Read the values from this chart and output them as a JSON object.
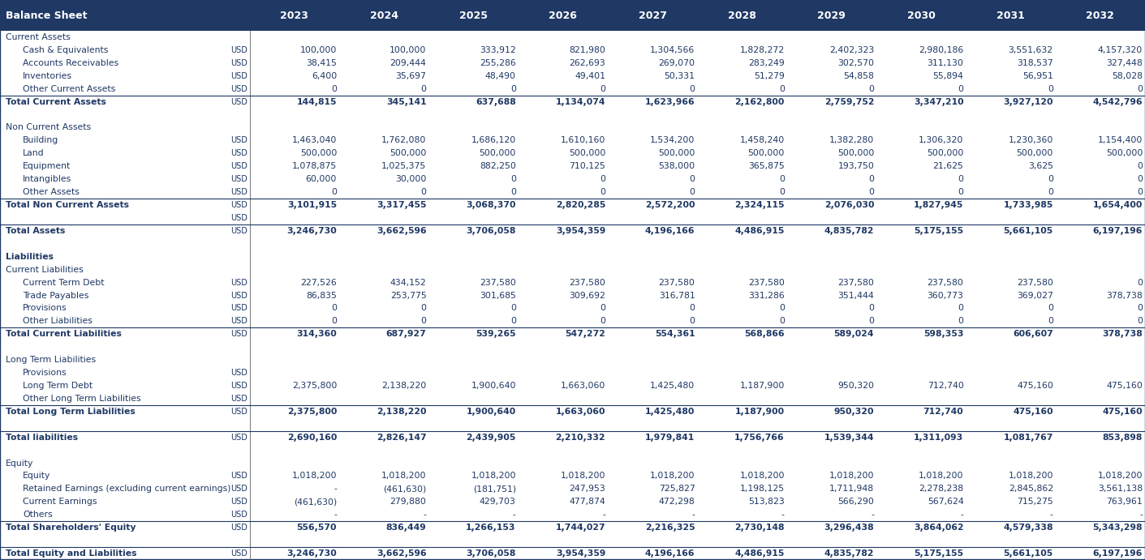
{
  "title": "Balance Sheet",
  "years": [
    "2023",
    "2024",
    "2025",
    "2026",
    "2027",
    "2028",
    "2029",
    "2030",
    "2031",
    "2032"
  ],
  "header_bg": "#1F3864",
  "header_text": "#FFFFFF",
  "normal_text_color": "#1F3864",
  "rows": [
    {
      "label": "Current Assets",
      "indent": 0,
      "currency": "",
      "is_section": true,
      "is_total": false,
      "is_bold": false,
      "values": [
        "",
        "",
        "",
        "",
        "",
        "",
        "",
        "",
        "",
        ""
      ],
      "top_border": false
    },
    {
      "label": "Cash & Equivalents",
      "indent": 1,
      "currency": "USD",
      "is_section": false,
      "is_total": false,
      "is_bold": false,
      "values": [
        "100,000",
        "100,000",
        "333,912",
        "821,980",
        "1,304,566",
        "1,828,272",
        "2,402,323",
        "2,980,186",
        "3,551,632",
        "4,157,320"
      ],
      "top_border": false
    },
    {
      "label": "Accounts Receivables",
      "indent": 1,
      "currency": "USD",
      "is_section": false,
      "is_total": false,
      "is_bold": false,
      "values": [
        "38,415",
        "209,444",
        "255,286",
        "262,693",
        "269,070",
        "283,249",
        "302,570",
        "311,130",
        "318,537",
        "327,448"
      ],
      "top_border": false
    },
    {
      "label": "Inventories",
      "indent": 1,
      "currency": "USD",
      "is_section": false,
      "is_total": false,
      "is_bold": false,
      "values": [
        "6,400",
        "35,697",
        "48,490",
        "49,401",
        "50,331",
        "51,279",
        "54,858",
        "55,894",
        "56,951",
        "58,028"
      ],
      "top_border": false
    },
    {
      "label": "Other Current Assets",
      "indent": 1,
      "currency": "USD",
      "is_section": false,
      "is_total": false,
      "is_bold": false,
      "values": [
        "0",
        "0",
        "0",
        "0",
        "0",
        "0",
        "0",
        "0",
        "0",
        "0"
      ],
      "top_border": false
    },
    {
      "label": "Total Current Assets",
      "indent": 0,
      "currency": "USD",
      "is_section": false,
      "is_total": true,
      "is_bold": true,
      "values": [
        "144,815",
        "345,141",
        "637,688",
        "1,134,074",
        "1,623,966",
        "2,162,800",
        "2,759,752",
        "3,347,210",
        "3,927,120",
        "4,542,796"
      ],
      "top_border": true
    },
    {
      "label": "",
      "indent": 0,
      "currency": "",
      "is_section": false,
      "is_total": false,
      "is_bold": false,
      "values": [
        "",
        "",
        "",
        "",
        "",
        "",
        "",
        "",
        "",
        ""
      ],
      "top_border": false
    },
    {
      "label": "Non Current Assets",
      "indent": 0,
      "currency": "",
      "is_section": true,
      "is_total": false,
      "is_bold": false,
      "values": [
        "",
        "",
        "",
        "",
        "",
        "",
        "",
        "",
        "",
        ""
      ],
      "top_border": false
    },
    {
      "label": "Building",
      "indent": 1,
      "currency": "USD",
      "is_section": false,
      "is_total": false,
      "is_bold": false,
      "values": [
        "1,463,040",
        "1,762,080",
        "1,686,120",
        "1,610,160",
        "1,534,200",
        "1,458,240",
        "1,382,280",
        "1,306,320",
        "1,230,360",
        "1,154,400"
      ],
      "top_border": false
    },
    {
      "label": "Land",
      "indent": 1,
      "currency": "USD",
      "is_section": false,
      "is_total": false,
      "is_bold": false,
      "values": [
        "500,000",
        "500,000",
        "500,000",
        "500,000",
        "500,000",
        "500,000",
        "500,000",
        "500,000",
        "500,000",
        "500,000"
      ],
      "top_border": false
    },
    {
      "label": "Equipment",
      "indent": 1,
      "currency": "USD",
      "is_section": false,
      "is_total": false,
      "is_bold": false,
      "values": [
        "1,078,875",
        "1,025,375",
        "882,250",
        "710,125",
        "538,000",
        "365,875",
        "193,750",
        "21,625",
        "3,625",
        "0"
      ],
      "top_border": false
    },
    {
      "label": "Intangibles",
      "indent": 1,
      "currency": "USD",
      "is_section": false,
      "is_total": false,
      "is_bold": false,
      "values": [
        "60,000",
        "30,000",
        "0",
        "0",
        "0",
        "0",
        "0",
        "0",
        "0",
        "0"
      ],
      "top_border": false
    },
    {
      "label": "Other Assets",
      "indent": 1,
      "currency": "USD",
      "is_section": false,
      "is_total": false,
      "is_bold": false,
      "values": [
        "0",
        "0",
        "0",
        "0",
        "0",
        "0",
        "0",
        "0",
        "0",
        "0"
      ],
      "top_border": false
    },
    {
      "label": "Total Non Current Assets",
      "indent": 0,
      "currency": "USD",
      "is_section": false,
      "is_total": true,
      "is_bold": true,
      "values": [
        "3,101,915",
        "3,317,455",
        "3,068,370",
        "2,820,285",
        "2,572,200",
        "2,324,115",
        "2,076,030",
        "1,827,945",
        "1,733,985",
        "1,654,400"
      ],
      "top_border": true
    },
    {
      "label": "",
      "indent": 0,
      "currency": "USD",
      "is_section": false,
      "is_total": false,
      "is_bold": false,
      "values": [
        "",
        "",
        "",
        "",
        "",
        "",
        "",
        "",
        "",
        ""
      ],
      "top_border": false
    },
    {
      "label": "Total Assets",
      "indent": 0,
      "currency": "USD",
      "is_section": false,
      "is_total": true,
      "is_bold": true,
      "values": [
        "3,246,730",
        "3,662,596",
        "3,706,058",
        "3,954,359",
        "4,196,166",
        "4,486,915",
        "4,835,782",
        "5,175,155",
        "5,661,105",
        "6,197,196"
      ],
      "top_border": true
    },
    {
      "label": "",
      "indent": 0,
      "currency": "",
      "is_section": false,
      "is_total": false,
      "is_bold": false,
      "values": [
        "",
        "",
        "",
        "",
        "",
        "",
        "",
        "",
        "",
        ""
      ],
      "top_border": false
    },
    {
      "label": "Liabilities",
      "indent": 0,
      "currency": "",
      "is_section": true,
      "is_total": false,
      "is_bold": true,
      "values": [
        "",
        "",
        "",
        "",
        "",
        "",
        "",
        "",
        "",
        ""
      ],
      "top_border": false
    },
    {
      "label": "Current Liabilities",
      "indent": 0,
      "currency": "",
      "is_section": true,
      "is_total": false,
      "is_bold": false,
      "values": [
        "",
        "",
        "",
        "",
        "",
        "",
        "",
        "",
        "",
        ""
      ],
      "top_border": false
    },
    {
      "label": "Current Term Debt",
      "indent": 1,
      "currency": "USD",
      "is_section": false,
      "is_total": false,
      "is_bold": false,
      "values": [
        "227,526",
        "434,152",
        "237,580",
        "237,580",
        "237,580",
        "237,580",
        "237,580",
        "237,580",
        "237,580",
        "0"
      ],
      "top_border": false
    },
    {
      "label": "Trade Payables",
      "indent": 1,
      "currency": "USD",
      "is_section": false,
      "is_total": false,
      "is_bold": false,
      "values": [
        "86,835",
        "253,775",
        "301,685",
        "309,692",
        "316,781",
        "331,286",
        "351,444",
        "360,773",
        "369,027",
        "378,738"
      ],
      "top_border": false
    },
    {
      "label": "Provisions",
      "indent": 1,
      "currency": "USD",
      "is_section": false,
      "is_total": false,
      "is_bold": false,
      "values": [
        "0",
        "0",
        "0",
        "0",
        "0",
        "0",
        "0",
        "0",
        "0",
        "0"
      ],
      "top_border": false
    },
    {
      "label": "Other Liabilities",
      "indent": 1,
      "currency": "USD",
      "is_section": false,
      "is_total": false,
      "is_bold": false,
      "values": [
        "0",
        "0",
        "0",
        "0",
        "0",
        "0",
        "0",
        "0",
        "0",
        "0"
      ],
      "top_border": false
    },
    {
      "label": "Total Current Liabilities",
      "indent": 0,
      "currency": "USD",
      "is_section": false,
      "is_total": true,
      "is_bold": true,
      "values": [
        "314,360",
        "687,927",
        "539,265",
        "547,272",
        "554,361",
        "568,866",
        "589,024",
        "598,353",
        "606,607",
        "378,738"
      ],
      "top_border": true
    },
    {
      "label": "",
      "indent": 0,
      "currency": "",
      "is_section": false,
      "is_total": false,
      "is_bold": false,
      "values": [
        "",
        "",
        "",
        "",
        "",
        "",
        "",
        "",
        "",
        ""
      ],
      "top_border": false
    },
    {
      "label": "Long Term Liabilities",
      "indent": 0,
      "currency": "",
      "is_section": true,
      "is_total": false,
      "is_bold": false,
      "values": [
        "",
        "",
        "",
        "",
        "",
        "",
        "",
        "",
        "",
        ""
      ],
      "top_border": false
    },
    {
      "label": "Provisions",
      "indent": 1,
      "currency": "USD",
      "is_section": false,
      "is_total": false,
      "is_bold": false,
      "values": [
        "",
        "",
        "",
        "",
        "",
        "",
        "",
        "",
        "",
        ""
      ],
      "top_border": false
    },
    {
      "label": "Long Term Debt",
      "indent": 1,
      "currency": "USD",
      "is_section": false,
      "is_total": false,
      "is_bold": false,
      "values": [
        "2,375,800",
        "2,138,220",
        "1,900,640",
        "1,663,060",
        "1,425,480",
        "1,187,900",
        "950,320",
        "712,740",
        "475,160",
        "475,160"
      ],
      "top_border": false
    },
    {
      "label": "Other Long Term Liabilities",
      "indent": 1,
      "currency": "USD",
      "is_section": false,
      "is_total": false,
      "is_bold": false,
      "values": [
        "",
        "",
        "",
        "",
        "",
        "",
        "",
        "",
        "",
        ""
      ],
      "top_border": false
    },
    {
      "label": "Total Long Term Liabilities",
      "indent": 0,
      "currency": "USD",
      "is_section": false,
      "is_total": true,
      "is_bold": true,
      "values": [
        "2,375,800",
        "2,138,220",
        "1,900,640",
        "1,663,060",
        "1,425,480",
        "1,187,900",
        "950,320",
        "712,740",
        "475,160",
        "475,160"
      ],
      "top_border": true
    },
    {
      "label": "",
      "indent": 0,
      "currency": "",
      "is_section": false,
      "is_total": false,
      "is_bold": false,
      "values": [
        "",
        "",
        "",
        "",
        "",
        "",
        "",
        "",
        "",
        ""
      ],
      "top_border": false
    },
    {
      "label": "Total liabilities",
      "indent": 0,
      "currency": "USD",
      "is_section": false,
      "is_total": true,
      "is_bold": true,
      "values": [
        "2,690,160",
        "2,826,147",
        "2,439,905",
        "2,210,332",
        "1,979,841",
        "1,756,766",
        "1,539,344",
        "1,311,093",
        "1,081,767",
        "853,898"
      ],
      "top_border": true
    },
    {
      "label": "",
      "indent": 0,
      "currency": "",
      "is_section": false,
      "is_total": false,
      "is_bold": false,
      "values": [
        "",
        "",
        "",
        "",
        "",
        "",
        "",
        "",
        "",
        ""
      ],
      "top_border": false
    },
    {
      "label": "Equity",
      "indent": 0,
      "currency": "",
      "is_section": true,
      "is_total": false,
      "is_bold": false,
      "values": [
        "",
        "",
        "",
        "",
        "",
        "",
        "",
        "",
        "",
        ""
      ],
      "top_border": false
    },
    {
      "label": "Equity",
      "indent": 1,
      "currency": "USD",
      "is_section": false,
      "is_total": false,
      "is_bold": false,
      "values": [
        "1,018,200",
        "1,018,200",
        "1,018,200",
        "1,018,200",
        "1,018,200",
        "1,018,200",
        "1,018,200",
        "1,018,200",
        "1,018,200",
        "1,018,200"
      ],
      "top_border": false
    },
    {
      "label": "Retained Earnings (excluding current earnings)",
      "indent": 1,
      "currency": "USD",
      "is_section": false,
      "is_total": false,
      "is_bold": false,
      "values": [
        "-",
        "(461,630)",
        "(181,751)",
        "247,953",
        "725,827",
        "1,198,125",
        "1,711,948",
        "2,278,238",
        "2,845,862",
        "3,561,138"
      ],
      "top_border": false
    },
    {
      "label": "Current Earnings",
      "indent": 1,
      "currency": "USD",
      "is_section": false,
      "is_total": false,
      "is_bold": false,
      "values": [
        "(461,630)",
        "279,880",
        "429,703",
        "477,874",
        "472,298",
        "513,823",
        "566,290",
        "567,624",
        "715,275",
        "763,961"
      ],
      "top_border": false
    },
    {
      "label": "Others",
      "indent": 1,
      "currency": "USD",
      "is_section": false,
      "is_total": false,
      "is_bold": false,
      "values": [
        "-",
        "-",
        "-",
        "-",
        "-",
        "-",
        "-",
        "-",
        "-",
        "-"
      ],
      "top_border": false
    },
    {
      "label": "Total Shareholders' Equity",
      "indent": 0,
      "currency": "USD",
      "is_section": false,
      "is_total": true,
      "is_bold": true,
      "values": [
        "556,570",
        "836,449",
        "1,266,153",
        "1,744,027",
        "2,216,325",
        "2,730,148",
        "3,296,438",
        "3,864,062",
        "4,579,338",
        "5,343,298"
      ],
      "top_border": true
    },
    {
      "label": "",
      "indent": 0,
      "currency": "",
      "is_section": false,
      "is_total": false,
      "is_bold": false,
      "values": [
        "",
        "",
        "",
        "",
        "",
        "",
        "",
        "",
        "",
        ""
      ],
      "top_border": false
    },
    {
      "label": "Total Equity and Liabilities",
      "indent": 0,
      "currency": "USD",
      "is_section": false,
      "is_total": true,
      "is_bold": true,
      "values": [
        "3,246,730",
        "3,662,596",
        "3,706,058",
        "3,954,359",
        "4,196,166",
        "4,486,915",
        "4,835,782",
        "5,175,155",
        "5,661,105",
        "6,197,196"
      ],
      "top_border": true
    }
  ],
  "figsize": [
    14.11,
    6.91
  ],
  "dpi": 100
}
